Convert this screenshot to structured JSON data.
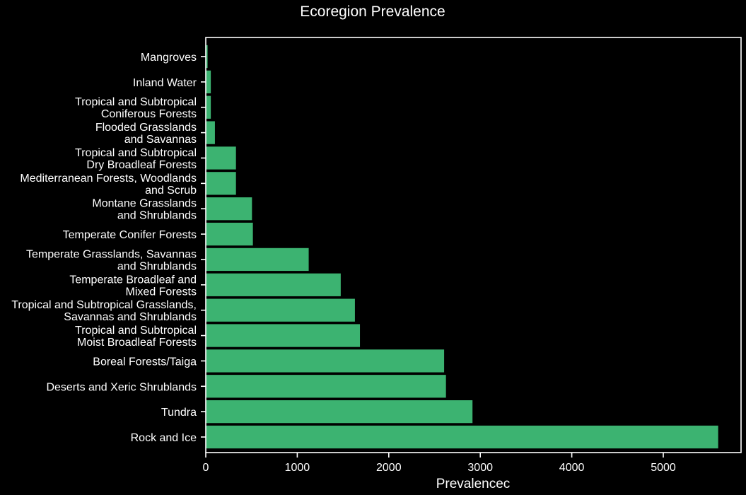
{
  "chart_data": {
    "type": "bar",
    "orientation": "horizontal",
    "title": "Ecoregion Prevalence",
    "xlabel": "Prevalencec",
    "ylabel": "",
    "xlim": [
      0,
      5850
    ],
    "xticks": [
      0,
      1000,
      2000,
      3000,
      4000,
      5000
    ],
    "grid": false,
    "categories": [
      [
        "Mangroves"
      ],
      [
        "Inland Water"
      ],
      [
        "Tropical and Subtropical",
        "Coniferous Forests"
      ],
      [
        "Flooded Grasslands",
        "and Savannas"
      ],
      [
        "Tropical and Subtropical",
        "Dry Broadleaf Forests"
      ],
      [
        "Mediterranean Forests, Woodlands",
        "and Scrub"
      ],
      [
        "Montane Grasslands",
        "and Shrublands"
      ],
      [
        "Temperate Conifer Forests"
      ],
      [
        "Temperate Grasslands, Savannas",
        "and Shrublands"
      ],
      [
        "Temperate Broadleaf and",
        "Mixed Forests"
      ],
      [
        "Tropical and Subtropical Grasslands,",
        "Savannas and Shrublands"
      ],
      [
        "Tropical and Subtropical",
        "Moist Broadleaf Forests"
      ],
      [
        "Boreal Forests/Taiga"
      ],
      [
        "Deserts and Xeric Shrublands"
      ],
      [
        "Tundra"
      ],
      [
        "Rock and Ice"
      ]
    ],
    "values": [
      20,
      55,
      55,
      100,
      330,
      330,
      505,
      515,
      1125,
      1475,
      1630,
      1685,
      2605,
      2625,
      2915,
      5600
    ],
    "bar_color": "#3cb371",
    "background_color": "#000000",
    "text_color": "#ffffff"
  }
}
